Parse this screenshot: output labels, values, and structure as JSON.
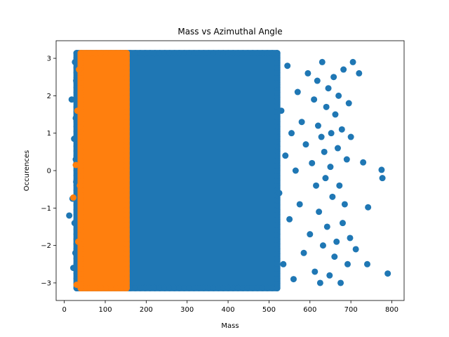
{
  "chart_data": {
    "type": "scatter",
    "title": "Mass vs Azimuthal Angle",
    "xlabel": "Mass",
    "ylabel": "Occurences",
    "xlim": [
      -20,
      830
    ],
    "ylim": [
      -3.47,
      3.47
    ],
    "x_ticks": [
      0,
      100,
      200,
      300,
      400,
      500,
      600,
      700,
      800
    ],
    "y_ticks": [
      -3,
      -2,
      -1,
      0,
      1,
      2,
      3
    ],
    "grid": false,
    "legend": "none",
    "series": [
      {
        "color": "#1f77b4",
        "dense_region": {
          "x": [
            30,
            520
          ],
          "y": [
            -3.14,
            3.14
          ]
        },
        "points": [
          [
            12,
            -1.2
          ],
          [
            18,
            1.9
          ],
          [
            20,
            -0.75
          ],
          [
            22,
            -2.6
          ],
          [
            24,
            0.85
          ],
          [
            25,
            -1.4
          ],
          [
            26,
            2.9
          ],
          [
            27,
            -2.2
          ],
          [
            28,
            0.3
          ],
          [
            28,
            1.4
          ],
          [
            29,
            -0.3
          ],
          [
            29,
            2.4
          ],
          [
            520,
            2.3
          ],
          [
            525,
            -0.6
          ],
          [
            530,
            1.6
          ],
          [
            535,
            -2.5
          ],
          [
            540,
            0.4
          ],
          [
            545,
            2.8
          ],
          [
            550,
            -1.3
          ],
          [
            555,
            1.0
          ],
          [
            560,
            -2.9
          ],
          [
            565,
            0.0
          ],
          [
            570,
            2.1
          ],
          [
            575,
            -0.9
          ],
          [
            580,
            1.3
          ],
          [
            585,
            -2.2
          ],
          [
            590,
            0.7
          ],
          [
            595,
            2.6
          ],
          [
            600,
            -1.7
          ],
          [
            605,
            0.2
          ],
          [
            610,
            1.9
          ],
          [
            612,
            -2.7
          ],
          [
            615,
            -0.4
          ],
          [
            618,
            2.4
          ],
          [
            620,
            1.2
          ],
          [
            622,
            -1.1
          ],
          [
            625,
            -3.0
          ],
          [
            628,
            0.9
          ],
          [
            630,
            2.9
          ],
          [
            632,
            -2.0
          ],
          [
            635,
            0.5
          ],
          [
            638,
            -0.2
          ],
          [
            640,
            1.7
          ],
          [
            642,
            -1.5
          ],
          [
            645,
            2.2
          ],
          [
            648,
            -2.8
          ],
          [
            650,
            0.1
          ],
          [
            652,
            1.0
          ],
          [
            655,
            -0.7
          ],
          [
            658,
            2.5
          ],
          [
            660,
            -2.3
          ],
          [
            662,
            1.5
          ],
          [
            665,
            -1.9
          ],
          [
            668,
            0.6
          ],
          [
            670,
            2.0
          ],
          [
            672,
            -0.4
          ],
          [
            675,
            -3.0
          ],
          [
            678,
            1.1
          ],
          [
            680,
            -1.4
          ],
          [
            682,
            2.7
          ],
          [
            685,
            -0.9
          ],
          [
            690,
            0.3
          ],
          [
            692,
            -2.5
          ],
          [
            695,
            1.8
          ],
          [
            698,
            -1.8
          ],
          [
            700,
            0.9
          ],
          [
            705,
            2.9
          ],
          [
            712,
            -2.1
          ],
          [
            720,
            2.6
          ],
          [
            730,
            0.22
          ],
          [
            740,
            -2.5
          ],
          [
            742,
            -0.98
          ],
          [
            775,
            0.02
          ],
          [
            777,
            -0.2
          ],
          [
            790,
            -2.75
          ]
        ]
      },
      {
        "color": "#ff7f0e",
        "dense_region": {
          "x": [
            40,
            152
          ],
          "y": [
            -3.14,
            3.14
          ]
        },
        "points": [
          [
            22,
            -0.72
          ],
          [
            28,
            0.15
          ],
          [
            30,
            -3.05
          ],
          [
            32,
            1.6
          ],
          [
            34,
            -1.9
          ],
          [
            36,
            2.7
          ],
          [
            38,
            -0.4
          ]
        ]
      }
    ]
  }
}
